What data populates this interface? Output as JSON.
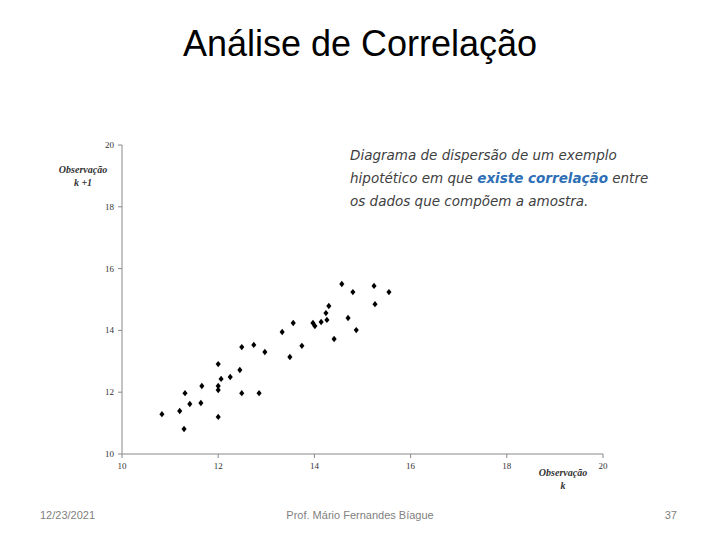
{
  "chart_data": {
    "type": "scatter",
    "title": "Análise de Correlação",
    "annotation": [
      "Diagrama de dispersão de um exemplo hipotético em que ",
      "existe correlação",
      " entre os dados que compõem a amostra."
    ],
    "x_label": "Observação k",
    "y_label": "Observação k +1",
    "xlim": [
      10,
      20
    ],
    "ylim": [
      10,
      20
    ],
    "xticks": [
      10,
      12,
      14,
      16,
      18,
      20
    ],
    "yticks": [
      10,
      12,
      14,
      16,
      18,
      20
    ],
    "grid": false,
    "marker": "diamond",
    "color": "#000000",
    "x": [
      10.83,
      11.2,
      11.31,
      11.41,
      11.29,
      11.66,
      11.64,
      12.0,
      12.0,
      12.0,
      12.06,
      12.25,
      12.0,
      12.45,
      12.49,
      12.49,
      12.74,
      12.85,
      12.97,
      13.33,
      13.49,
      13.56,
      13.74,
      13.97,
      14.01,
      14.14,
      14.26,
      14.24,
      14.3,
      14.41,
      14.57,
      14.7,
      14.8,
      14.87,
      15.24,
      15.26,
      15.55
    ],
    "values": [
      11.29,
      11.39,
      11.97,
      11.62,
      10.81,
      12.2,
      11.65,
      12.91,
      12.2,
      12.07,
      12.43,
      12.49,
      11.2,
      12.72,
      13.46,
      11.97,
      13.53,
      11.97,
      13.3,
      13.95,
      13.14,
      14.24,
      13.5,
      14.24,
      14.14,
      14.27,
      14.34,
      14.56,
      14.79,
      13.72,
      15.5,
      14.4,
      15.24,
      14.01,
      15.44,
      14.85,
      15.24
    ]
  },
  "footer": {
    "date": "12/23/2021",
    "author": "Prof. Mário Fernandes Bíague",
    "page": "37"
  }
}
